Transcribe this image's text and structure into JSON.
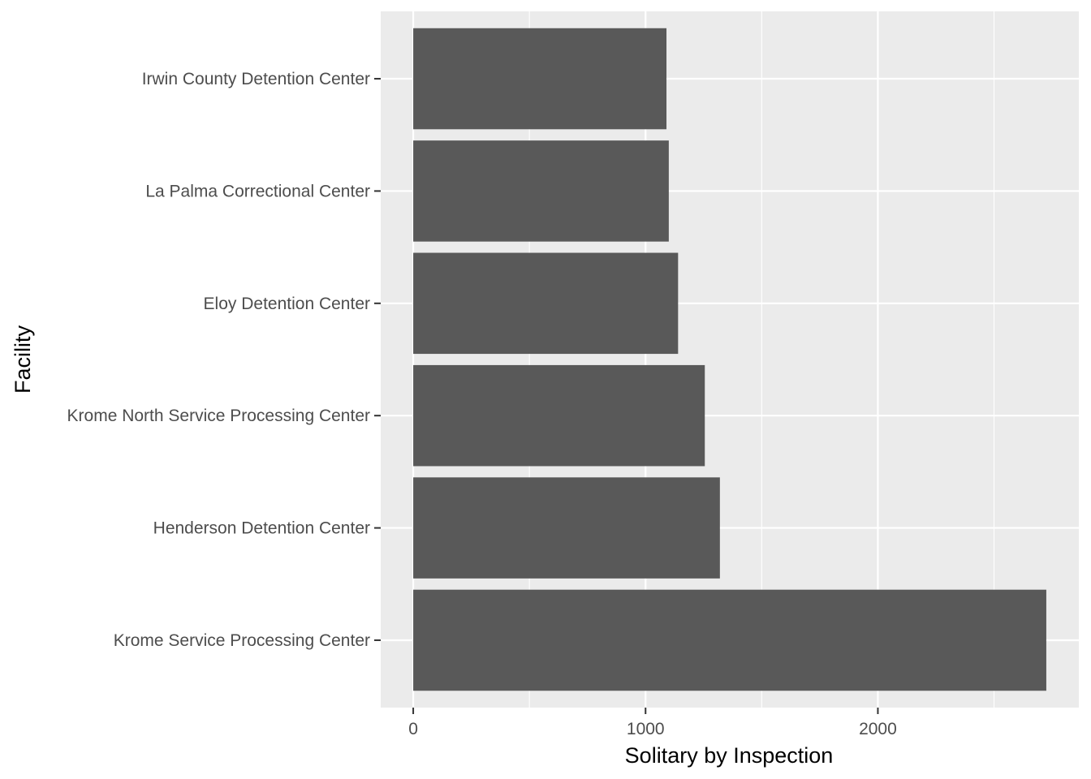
{
  "chart_data": {
    "type": "bar",
    "orientation": "horizontal",
    "categories": [
      "Krome Service Processing Center",
      "Henderson Detention Center",
      "Krome North Service Processing Center",
      "Eloy Detention Center",
      "La Palma Correctional Center",
      "Irwin County Detention Center"
    ],
    "values": [
      2725,
      1320,
      1255,
      1140,
      1100,
      1090
    ],
    "xlabel": "Solitary by Inspection",
    "ylabel": "Facility",
    "xlim": [
      -140,
      2865
    ],
    "x_ticks": [
      0,
      1000,
      2000
    ],
    "x_tick_labels": [
      "0",
      "1000",
      "2000"
    ],
    "grid": true,
    "legend": "none",
    "colors": {
      "bar": "#595959",
      "panel_background": "#ebebeb",
      "grid": "#ffffff",
      "tick_text": "#4d4d4d",
      "title_text": "#000000"
    }
  }
}
